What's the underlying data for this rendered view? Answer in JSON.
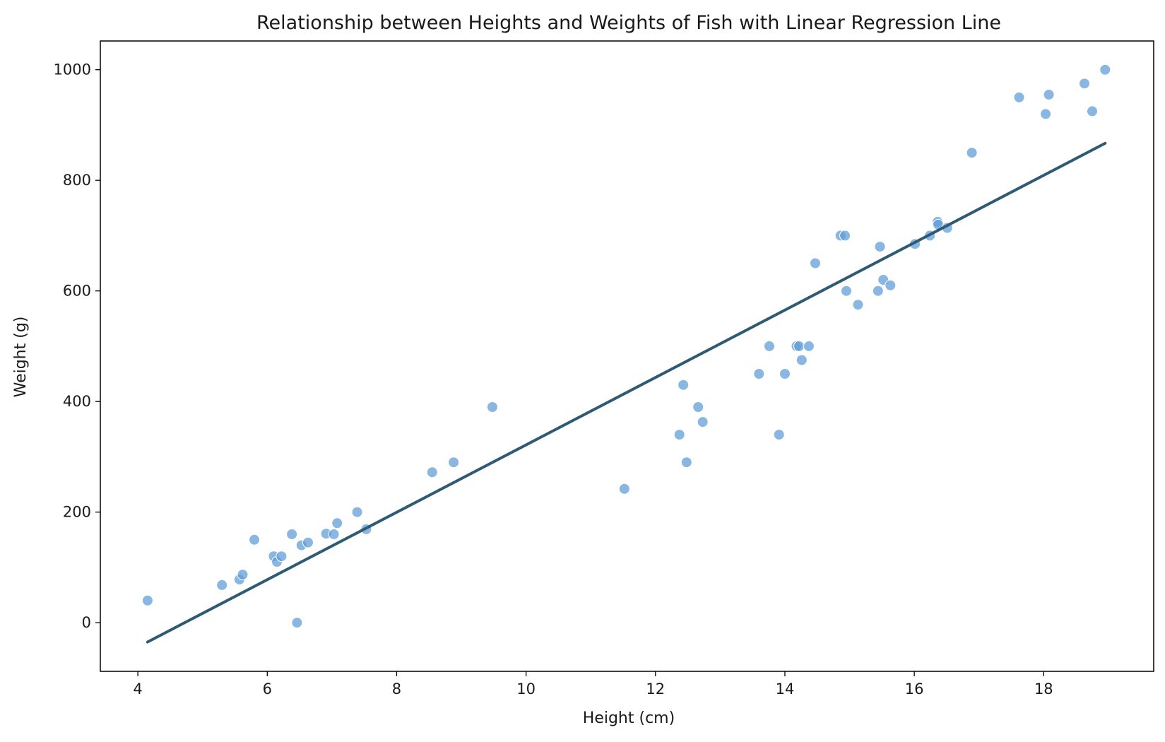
{
  "chart_data": {
    "type": "scatter",
    "title": "Relationship between Heights and Weights of Fish with Linear Regression Line",
    "xlabel": "Height (cm)",
    "ylabel": "Weight (g)",
    "xlim": [
      3.42,
      19.7
    ],
    "ylim": [
      -88,
      1052
    ],
    "xticks": [
      4,
      6,
      8,
      10,
      12,
      14,
      16,
      18
    ],
    "yticks": [
      0,
      200,
      400,
      600,
      800,
      1000
    ],
    "grid": false,
    "legend": "none",
    "colors": {
      "points": "#5b9bd5",
      "point_edge": "#ffffff",
      "regression_line": "#2e5a73",
      "frame": "#000000"
    },
    "series": [
      {
        "type": "scatter",
        "points": [
          [
            4.15,
            40
          ],
          [
            5.3,
            68
          ],
          [
            5.57,
            78
          ],
          [
            5.62,
            87
          ],
          [
            5.8,
            150
          ],
          [
            6.1,
            120
          ],
          [
            6.15,
            110
          ],
          [
            6.22,
            120
          ],
          [
            6.38,
            160
          ],
          [
            6.46,
            0
          ],
          [
            6.53,
            140
          ],
          [
            6.63,
            145
          ],
          [
            6.91,
            161
          ],
          [
            7.03,
            160
          ],
          [
            7.08,
            180
          ],
          [
            7.39,
            200
          ],
          [
            7.53,
            169
          ],
          [
            8.55,
            272
          ],
          [
            8.88,
            290
          ],
          [
            9.48,
            390
          ],
          [
            11.52,
            242
          ],
          [
            12.37,
            340
          ],
          [
            12.43,
            430
          ],
          [
            12.48,
            290
          ],
          [
            12.66,
            390
          ],
          [
            12.73,
            363
          ],
          [
            13.6,
            450
          ],
          [
            13.76,
            500
          ],
          [
            13.91,
            340
          ],
          [
            14.0,
            450
          ],
          [
            14.18,
            500
          ],
          [
            14.22,
            500
          ],
          [
            14.26,
            475
          ],
          [
            14.37,
            500
          ],
          [
            14.47,
            650
          ],
          [
            14.86,
            700
          ],
          [
            14.93,
            700
          ],
          [
            14.95,
            600
          ],
          [
            15.13,
            575
          ],
          [
            15.44,
            600
          ],
          [
            15.47,
            680
          ],
          [
            15.52,
            620
          ],
          [
            15.63,
            610
          ],
          [
            16.01,
            685
          ],
          [
            16.24,
            700
          ],
          [
            16.36,
            725
          ],
          [
            16.37,
            720
          ],
          [
            16.51,
            714
          ],
          [
            16.89,
            850
          ],
          [
            17.62,
            950
          ],
          [
            18.03,
            920
          ],
          [
            18.08,
            955
          ],
          [
            18.63,
            975
          ],
          [
            18.75,
            925
          ],
          [
            18.95,
            1000
          ]
        ]
      },
      {
        "type": "line",
        "points": [
          [
            4.15,
            -35
          ],
          [
            18.95,
            867
          ]
        ]
      }
    ]
  }
}
